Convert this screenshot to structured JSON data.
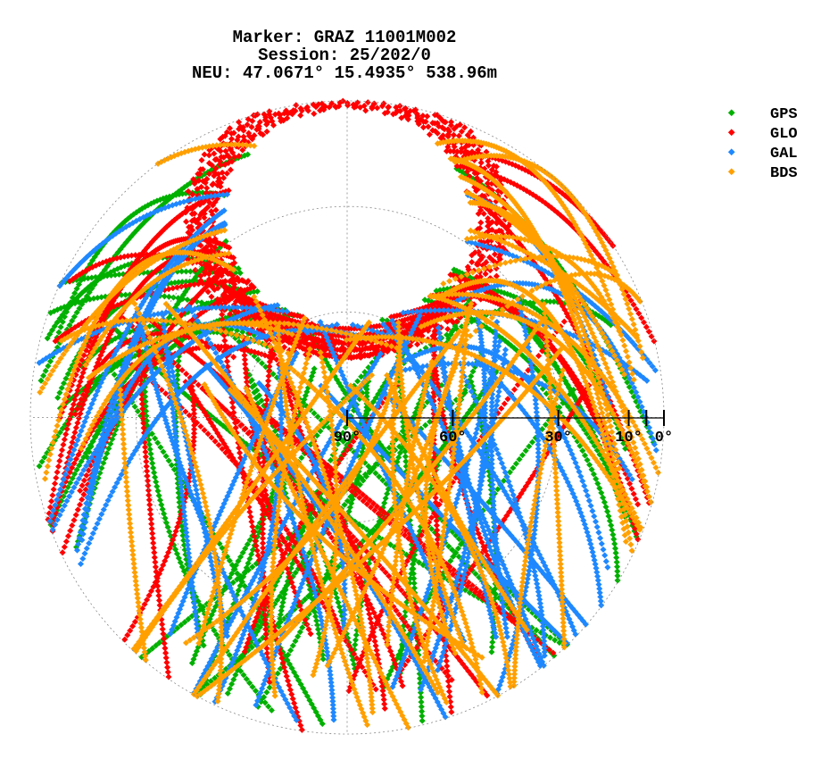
{
  "header": {
    "line1": "Marker: GRAZ 11001M002",
    "line2": "Session: 25/202/0",
    "line3": "NEU: 47.0671° 15.4935° 538.96m"
  },
  "chart_data": {
    "type": "scatter",
    "projection": "polar-skyplot (elevation/azimuth)",
    "title": "Marker: GRAZ 11001M002 / Session: 25/202/0 / NEU: 47.0671° 15.4935° 538.96m",
    "elevation_tick_labels": [
      "90°",
      "60°",
      "30°",
      "10°",
      "0°"
    ],
    "elevation_ticks_deg": [
      90,
      60,
      30,
      10,
      5,
      0
    ],
    "elevation_circles_deg": [
      0,
      30,
      60,
      90
    ],
    "azimuth_gridlines_deg": [
      0,
      90,
      180,
      270
    ],
    "grid": true,
    "legend_position": "top-right",
    "series": [
      {
        "name": "GPS",
        "color": "#00b000"
      },
      {
        "name": "GLO",
        "color": "#ff0000"
      },
      {
        "name": "GAL",
        "color": "#1e88ff"
      },
      {
        "name": "BDS",
        "color": "#ffa000"
      }
    ],
    "empty_region": "circular gap centered near azimuth 0° (north), elevation ~60°–90° from observer view (no satellite coverage toward the north celestial pole)"
  }
}
